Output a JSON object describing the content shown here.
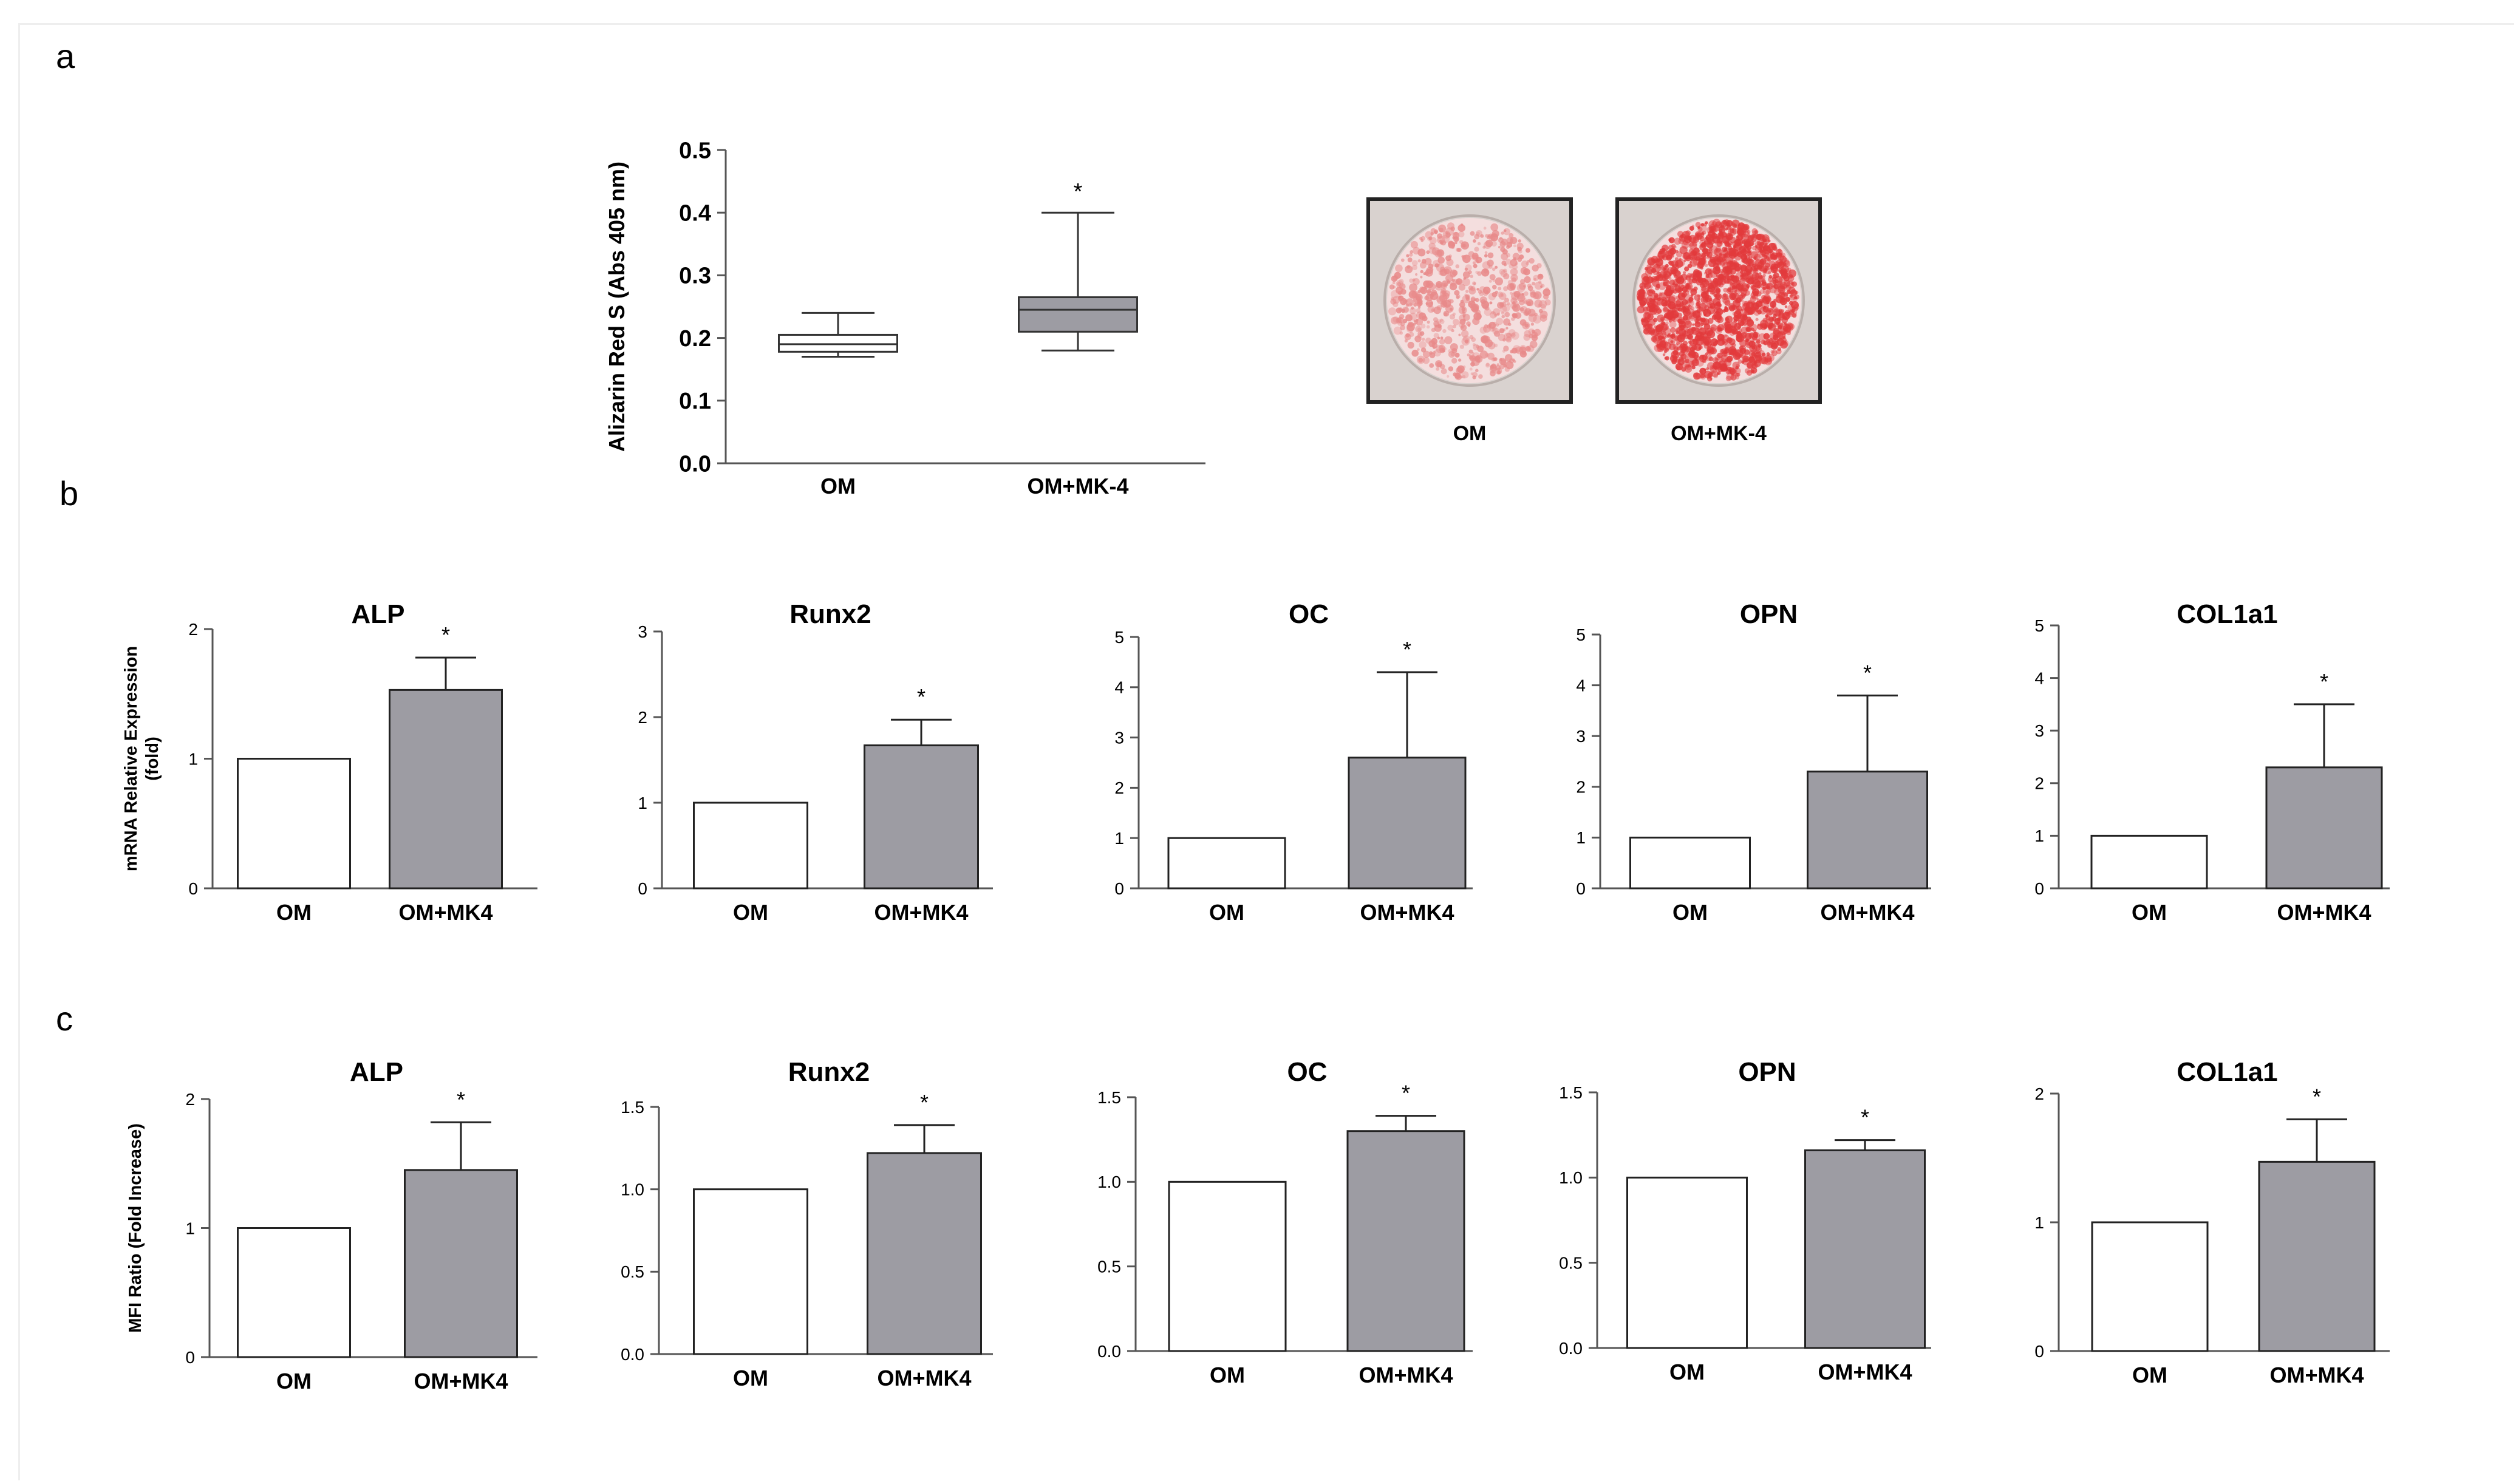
{
  "panels": {
    "a": "a",
    "b": "b",
    "c": "c"
  },
  "colors": {
    "gray_bar": "#9d9ca3",
    "white_bar": "#ffffff",
    "stroke": "#000000",
    "stain_om": "#e88a8a",
    "stain_mk4": "#e23a3c"
  },
  "images": {
    "wells": [
      {
        "label": "OM"
      },
      {
        "label": "OM+MK-4"
      }
    ]
  },
  "chart_data": [
    {
      "id": "alizarin",
      "type": "boxplot",
      "ylabel": "Alizarin Red S (Abs 405 nm)",
      "ylim": [
        0,
        0.5
      ],
      "yticks": [
        "0.0",
        "0.1",
        "0.2",
        "0.3",
        "0.4",
        "0.5"
      ],
      "categories": [
        "OM",
        "OM+MK-4"
      ],
      "boxes": [
        {
          "min": 0.17,
          "q1": 0.178,
          "median": 0.19,
          "q3": 0.205,
          "max": 0.24,
          "fill": "white"
        },
        {
          "min": 0.18,
          "q1": 0.21,
          "median": 0.245,
          "q3": 0.265,
          "max": 0.4,
          "fill": "gray"
        }
      ],
      "significance": [
        "",
        "*"
      ]
    },
    {
      "id": "b-alp",
      "type": "bar",
      "title": "ALP",
      "ylabel": "mRNA Relative Expression\n(fold)",
      "categories": [
        "OM",
        "OM+MK4"
      ],
      "values": [
        1.0,
        1.53
      ],
      "errors": [
        0.0,
        0.25
      ],
      "ylim": [
        0,
        2
      ],
      "yticks": [
        "0",
        "1",
        "2"
      ],
      "significance": [
        "",
        "*"
      ]
    },
    {
      "id": "b-runx2",
      "type": "bar",
      "title": "Runx2",
      "categories": [
        "OM",
        "OM+MK4"
      ],
      "values": [
        1.0,
        1.67
      ],
      "errors": [
        0.0,
        0.3
      ],
      "ylim": [
        0,
        3
      ],
      "yticks": [
        "0",
        "1",
        "2",
        "3"
      ],
      "significance": [
        "",
        "*"
      ]
    },
    {
      "id": "b-oc",
      "type": "bar",
      "title": "OC",
      "categories": [
        "OM",
        "OM+MK4"
      ],
      "values": [
        1.0,
        2.6
      ],
      "errors": [
        0.0,
        1.7
      ],
      "ylim": [
        0,
        5
      ],
      "yticks": [
        "0",
        "1",
        "2",
        "3",
        "4",
        "5"
      ],
      "significance": [
        "",
        "*"
      ]
    },
    {
      "id": "b-opn",
      "type": "bar",
      "title": "OPN",
      "categories": [
        "OM",
        "OM+MK4"
      ],
      "values": [
        1.0,
        2.3
      ],
      "errors": [
        0.0,
        1.5
      ],
      "ylim": [
        0,
        5
      ],
      "yticks": [
        "0",
        "1",
        "2",
        "3",
        "4",
        "5"
      ],
      "significance": [
        "",
        "*"
      ]
    },
    {
      "id": "b-col1a1",
      "type": "bar",
      "title": "COL1a1",
      "categories": [
        "OM",
        "OM+MK4"
      ],
      "values": [
        1.0,
        2.3
      ],
      "errors": [
        0.0,
        1.2
      ],
      "ylim": [
        0,
        5
      ],
      "yticks": [
        "0",
        "1",
        "2",
        "3",
        "4",
        "5"
      ],
      "significance": [
        "",
        "*"
      ]
    },
    {
      "id": "c-alp",
      "type": "bar",
      "title": "ALP",
      "ylabel": "MFI Ratio (Fold Increase)",
      "categories": [
        "OM",
        "OM+MK4"
      ],
      "values": [
        1.0,
        1.45
      ],
      "errors": [
        0.0,
        0.37
      ],
      "ylim": [
        0,
        2
      ],
      "yticks": [
        "0",
        "1",
        "2"
      ],
      "significance": [
        "",
        "*"
      ]
    },
    {
      "id": "c-runx2",
      "type": "bar",
      "title": "Runx2",
      "categories": [
        "OM",
        "OM+MK4"
      ],
      "values": [
        1.0,
        1.22
      ],
      "errors": [
        0.0,
        0.17
      ],
      "ylim": [
        0,
        1.5
      ],
      "yticks": [
        "0.0",
        "0.5",
        "1.0",
        "1.5"
      ],
      "significance": [
        "",
        "*"
      ]
    },
    {
      "id": "c-oc",
      "type": "bar",
      "title": "OC",
      "categories": [
        "OM",
        "OM+MK4"
      ],
      "values": [
        1.0,
        1.3
      ],
      "errors": [
        0.0,
        0.09
      ],
      "ylim": [
        0,
        1.5
      ],
      "yticks": [
        "0.0",
        "0.5",
        "1.0",
        "1.5"
      ],
      "significance": [
        "",
        "*"
      ]
    },
    {
      "id": "c-opn",
      "type": "bar",
      "title": "OPN",
      "categories": [
        "OM",
        "OM+MK4"
      ],
      "values": [
        1.0,
        1.16
      ],
      "errors": [
        0.0,
        0.06
      ],
      "ylim": [
        0,
        1.5
      ],
      "yticks": [
        "0.0",
        "0.5",
        "1.0",
        "1.5"
      ],
      "significance": [
        "",
        "*"
      ]
    },
    {
      "id": "c-col1a1",
      "type": "bar",
      "title": "COL1a1",
      "categories": [
        "OM",
        "OM+MK4"
      ],
      "values": [
        1.0,
        1.47
      ],
      "errors": [
        0.0,
        0.33
      ],
      "ylim": [
        0,
        2
      ],
      "yticks": [
        "0",
        "1",
        "2"
      ],
      "significance": [
        "",
        "*"
      ]
    }
  ]
}
